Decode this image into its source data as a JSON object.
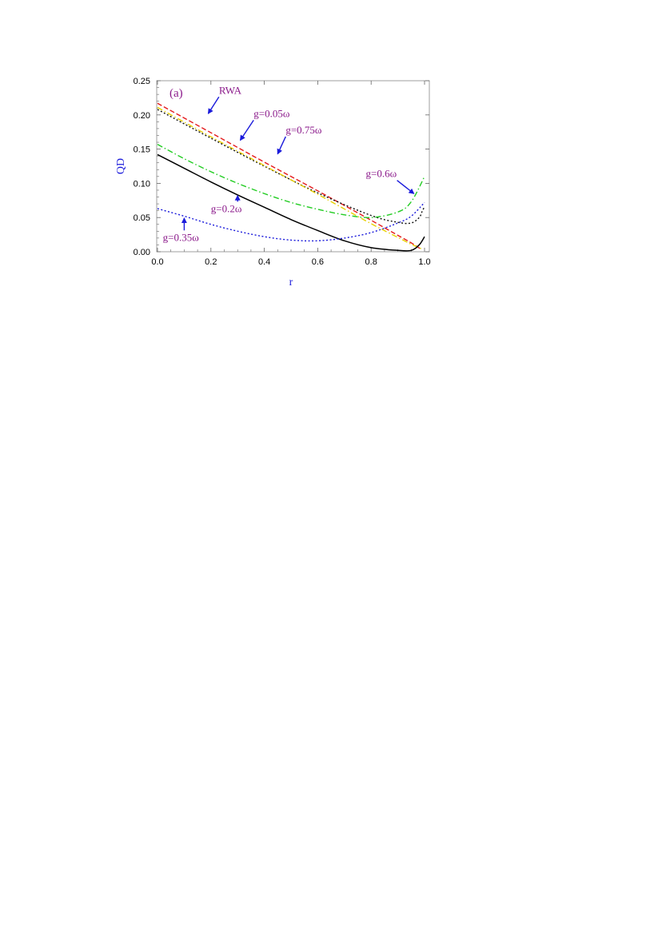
{
  "chart_data": {
    "type": "line",
    "panel_label": "(a)",
    "xlabel": "r",
    "ylabel": "QD",
    "xlim": [
      0.0,
      1.0
    ],
    "ylim": [
      0.0,
      0.25
    ],
    "x_ticks": [
      "0.0",
      "0.2",
      "0.4",
      "0.6",
      "0.8",
      "1.0"
    ],
    "y_ticks": [
      "0.00",
      "0.05",
      "0.10",
      "0.15",
      "0.20",
      "0.25"
    ],
    "grid": false,
    "legend": "none",
    "series": [
      {
        "name": "RWA",
        "color": "#e41a1c",
        "dash": "dashed",
        "x": [
          0.0,
          0.2,
          0.4,
          0.6,
          0.8,
          0.9,
          0.95,
          0.99
        ],
        "y": [
          0.217,
          0.174,
          0.131,
          0.089,
          0.046,
          0.024,
          0.013,
          0.003
        ]
      },
      {
        "name": "g=0.05ω",
        "color": "#111111",
        "dash": "dotted",
        "x": [
          0.0,
          0.2,
          0.4,
          0.6,
          0.8,
          0.9,
          0.95,
          0.98,
          0.99,
          1.0
        ],
        "y": [
          0.208,
          0.166,
          0.125,
          0.086,
          0.053,
          0.043,
          0.042,
          0.05,
          0.058,
          0.066
        ]
      },
      {
        "name": "g=0.75ω",
        "color": "#e8d000",
        "dash": "dashdot",
        "x": [
          0.0,
          0.2,
          0.4,
          0.6,
          0.8,
          0.9,
          0.95,
          0.99
        ],
        "y": [
          0.211,
          0.168,
          0.126,
          0.084,
          0.041,
          0.021,
          0.011,
          0.004
        ]
      },
      {
        "name": "g=0.6ω",
        "color": "#22cc22",
        "dash": "dashdot",
        "x": [
          0.0,
          0.1,
          0.2,
          0.3,
          0.4,
          0.5,
          0.6,
          0.7,
          0.8,
          0.9,
          0.95,
          1.0
        ],
        "y": [
          0.157,
          0.136,
          0.117,
          0.1,
          0.085,
          0.072,
          0.062,
          0.054,
          0.05,
          0.058,
          0.073,
          0.11
        ]
      },
      {
        "name": "g=0.2ω",
        "color": "#000000",
        "dash": "solid",
        "x": [
          0.0,
          0.1,
          0.2,
          0.3,
          0.4,
          0.5,
          0.6,
          0.7,
          0.8,
          0.9,
          0.95,
          0.98,
          1.0
        ],
        "y": [
          0.142,
          0.122,
          0.102,
          0.083,
          0.065,
          0.047,
          0.031,
          0.016,
          0.006,
          0.002,
          0.002,
          0.01,
          0.022
        ]
      },
      {
        "name": "g=0.35ω",
        "color": "#1a1adb",
        "dash": "dotted",
        "x": [
          0.0,
          0.1,
          0.2,
          0.3,
          0.4,
          0.5,
          0.6,
          0.7,
          0.8,
          0.9,
          0.95,
          1.0
        ],
        "y": [
          0.063,
          0.052,
          0.04,
          0.03,
          0.022,
          0.017,
          0.016,
          0.02,
          0.028,
          0.042,
          0.052,
          0.072
        ]
      }
    ],
    "annotations": [
      {
        "text": "RWA",
        "x": 0.23,
        "y": 0.231,
        "arrow_to": [
          0.19,
          0.202
        ]
      },
      {
        "text": "g=0.05ω",
        "x": 0.36,
        "y": 0.197,
        "arrow_to": [
          0.31,
          0.163
        ]
      },
      {
        "text": "g=0.75ω",
        "x": 0.48,
        "y": 0.173,
        "arrow_to": [
          0.45,
          0.143
        ]
      },
      {
        "text": "g=0.6ω",
        "x": 0.78,
        "y": 0.109,
        "arrow_to": [
          0.96,
          0.085
        ]
      },
      {
        "text": "g=0.2ω",
        "x": 0.2,
        "y": 0.058,
        "arrow_to": [
          0.3,
          0.082
        ]
      },
      {
        "text": "g=0.35ω",
        "x": 0.02,
        "y": 0.016,
        "arrow_to": [
          0.1,
          0.049
        ]
      }
    ]
  }
}
